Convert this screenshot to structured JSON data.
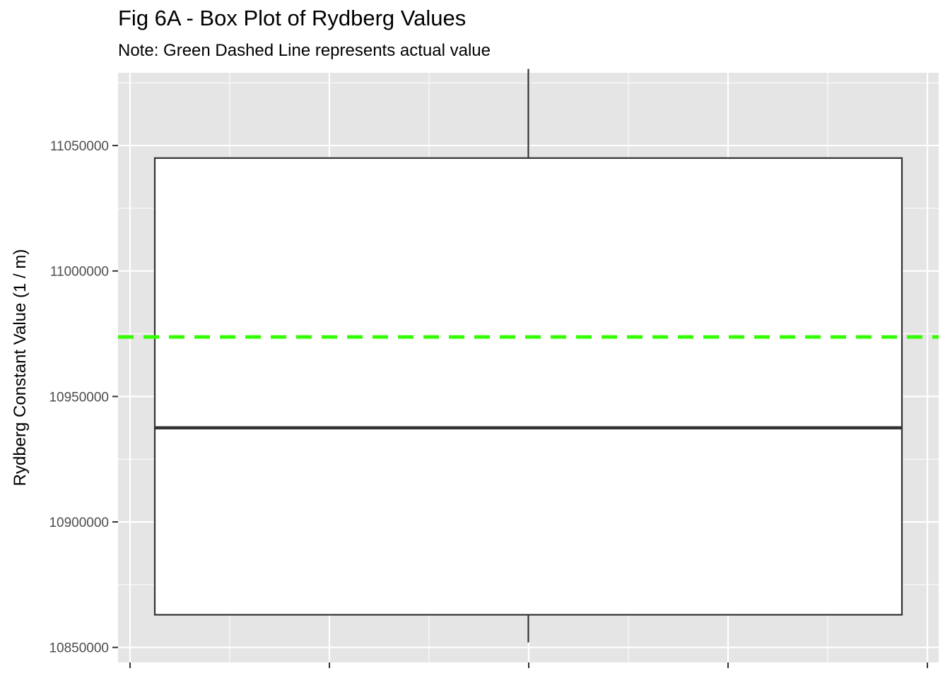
{
  "chart_data": {
    "type": "box",
    "title": "Fig 6A - Box Plot of Rydberg Values",
    "subtitle": "Note: Green Dashed Line represents actual value",
    "xlabel": "",
    "ylabel": "Rydberg Constant Value (1 / m)",
    "ylim": [
      10844000,
      11079000
    ],
    "yticks": [
      10850000,
      10900000,
      10950000,
      11000000,
      11050000
    ],
    "ytick_labels": [
      "10850000",
      "10900000",
      "10950000",
      "11000000",
      "11050000"
    ],
    "box": {
      "whisker_low": 10852000,
      "q1": 10863000,
      "median": 10937500,
      "q3": 11045000,
      "whisker_high": 11080500
    },
    "reference_line": {
      "value": 10973700,
      "style": "dashed",
      "color": "#33ff00"
    },
    "grid": true,
    "colors": {
      "panel": "#e5e5e5",
      "grid": "#ffffff",
      "box_fill": "#ffffff",
      "box_stroke": "#333333"
    }
  }
}
